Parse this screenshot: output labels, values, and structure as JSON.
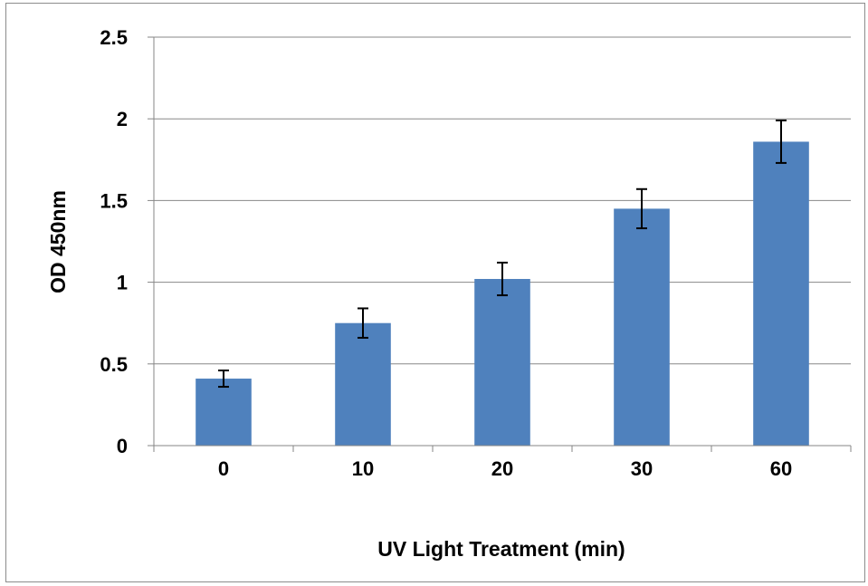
{
  "chart_data": {
    "type": "bar",
    "title": "",
    "xlabel": "UV Light Treatment (min)",
    "ylabel": "OD 450nm",
    "categories": [
      "0",
      "10",
      "20",
      "30",
      "60"
    ],
    "values": [
      0.41,
      0.75,
      1.02,
      1.45,
      1.86
    ],
    "error": [
      0.05,
      0.09,
      0.1,
      0.12,
      0.13
    ],
    "ylim": [
      0,
      2.5
    ],
    "yticks": [
      "0",
      "0.5",
      "1",
      "1.5",
      "2",
      "2.5"
    ],
    "grid": true,
    "legend": "none",
    "colors": {
      "bar": "#4F81BD",
      "grid": "#888888",
      "axis": "#868686",
      "errorbar": "#000000"
    }
  }
}
